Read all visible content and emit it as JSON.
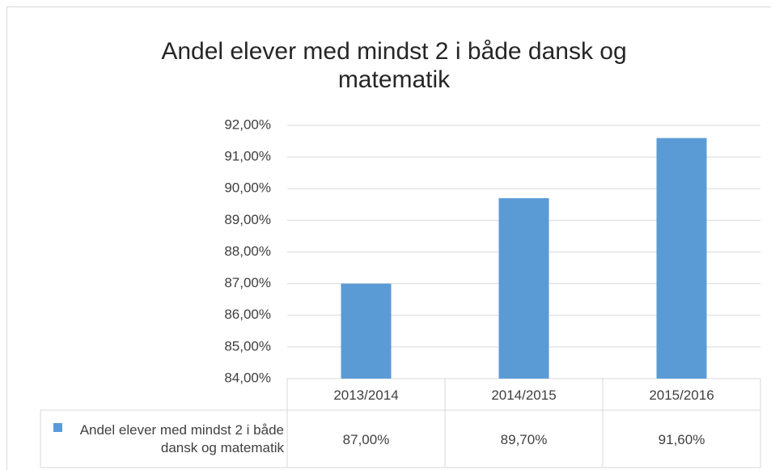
{
  "chart_data": {
    "type": "bar",
    "title": "Andel elever med mindst 2 i både dansk og matematik",
    "categories": [
      "2013/2014",
      "2014/2015",
      "2015/2016"
    ],
    "series": [
      {
        "name": "Andel elever med mindst 2 i både dansk og matematik",
        "color": "#5b9bd5",
        "values": [
          87,
          89.7,
          91.6
        ],
        "value_labels": [
          "87,00%",
          "89,70%",
          "91,60%"
        ]
      }
    ],
    "ylim": [
      84,
      92
    ],
    "yticks": [
      {
        "value": 84,
        "label": "84,00%"
      },
      {
        "value": 85,
        "label": "85,00%"
      },
      {
        "value": 86,
        "label": "86,00%"
      },
      {
        "value": 87,
        "label": "87,00%"
      },
      {
        "value": 88,
        "label": "88,00%"
      },
      {
        "value": 89,
        "label": "89,00%"
      },
      {
        "value": 90,
        "label": "90,00%"
      },
      {
        "value": 91,
        "label": "91,00%"
      },
      {
        "value": 92,
        "label": "92,00%"
      }
    ],
    "grid": true
  }
}
